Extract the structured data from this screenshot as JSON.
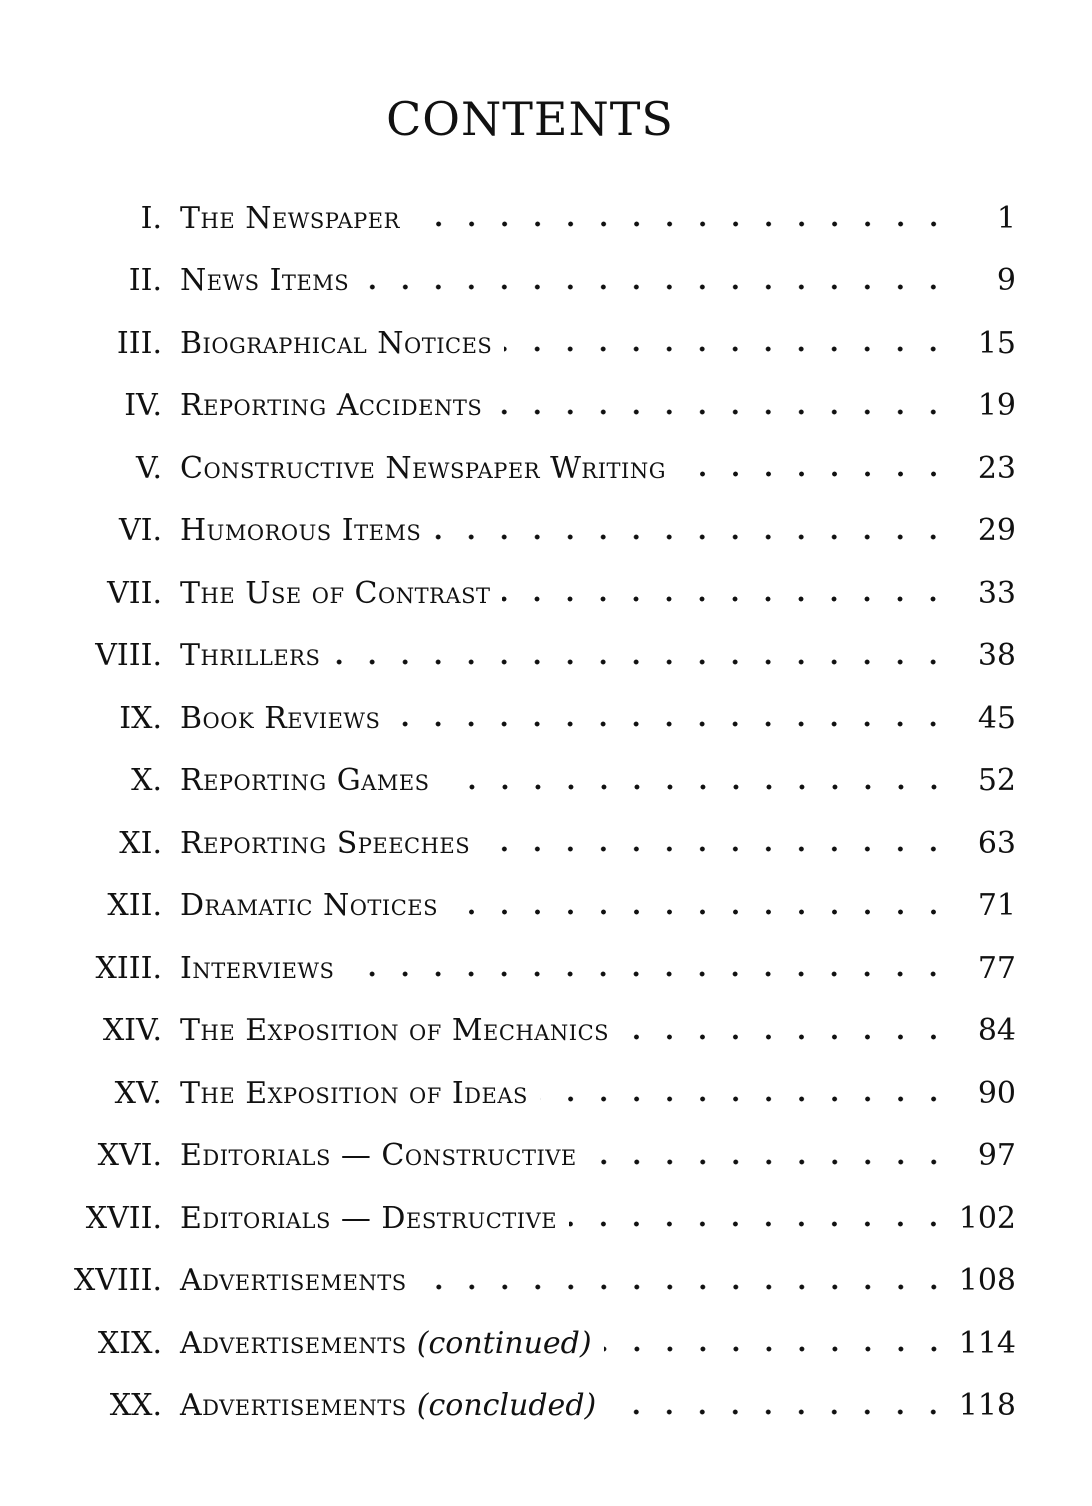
{
  "title": "CONTENTS",
  "entries": [
    {
      "numeral": "I.",
      "title": "The Newspaper",
      "page": "1"
    },
    {
      "numeral": "II.",
      "title": "News Items",
      "page": "9"
    },
    {
      "numeral": "III.",
      "title": "Biographical Notices",
      "page": "15"
    },
    {
      "numeral": "IV.",
      "title": "Reporting Accidents",
      "page": "19"
    },
    {
      "numeral": "V.",
      "title": "Constructive Newspaper Writing",
      "page": "23"
    },
    {
      "numeral": "VI.",
      "title": "Humorous Items",
      "page": "29"
    },
    {
      "numeral": "VII.",
      "title": "The Use of Contrast",
      "page": "33"
    },
    {
      "numeral": "VIII.",
      "title": "Thrillers",
      "page": "38"
    },
    {
      "numeral": "IX.",
      "title": "Book Reviews",
      "page": "45"
    },
    {
      "numeral": "X.",
      "title": "Reporting Games",
      "page": "52"
    },
    {
      "numeral": "XI.",
      "title": "Reporting Speeches",
      "page": "63"
    },
    {
      "numeral": "XII.",
      "title": "Dramatic Notices",
      "page": "71"
    },
    {
      "numeral": "XIII.",
      "title": "Interviews",
      "page": "77"
    },
    {
      "numeral": "XIV.",
      "title": "The Exposition of Mechanics",
      "page": "84"
    },
    {
      "numeral": "XV.",
      "title": "The Exposition of Ideas",
      "page": "90"
    },
    {
      "numeral": "XVI.",
      "title": "Editorials — Constructive",
      "page": "97"
    },
    {
      "numeral": "XVII.",
      "title": "Editorials — Destructive",
      "page": "102"
    },
    {
      "numeral": "XVIII.",
      "title": "Advertisements",
      "page": "108"
    },
    {
      "numeral": "XIX.",
      "title": "Advertisements",
      "note": "(continued)",
      "page": "114"
    },
    {
      "numeral": "XX.",
      "title": "Advertisements",
      "note": "(concluded)",
      "page": "118"
    }
  ]
}
